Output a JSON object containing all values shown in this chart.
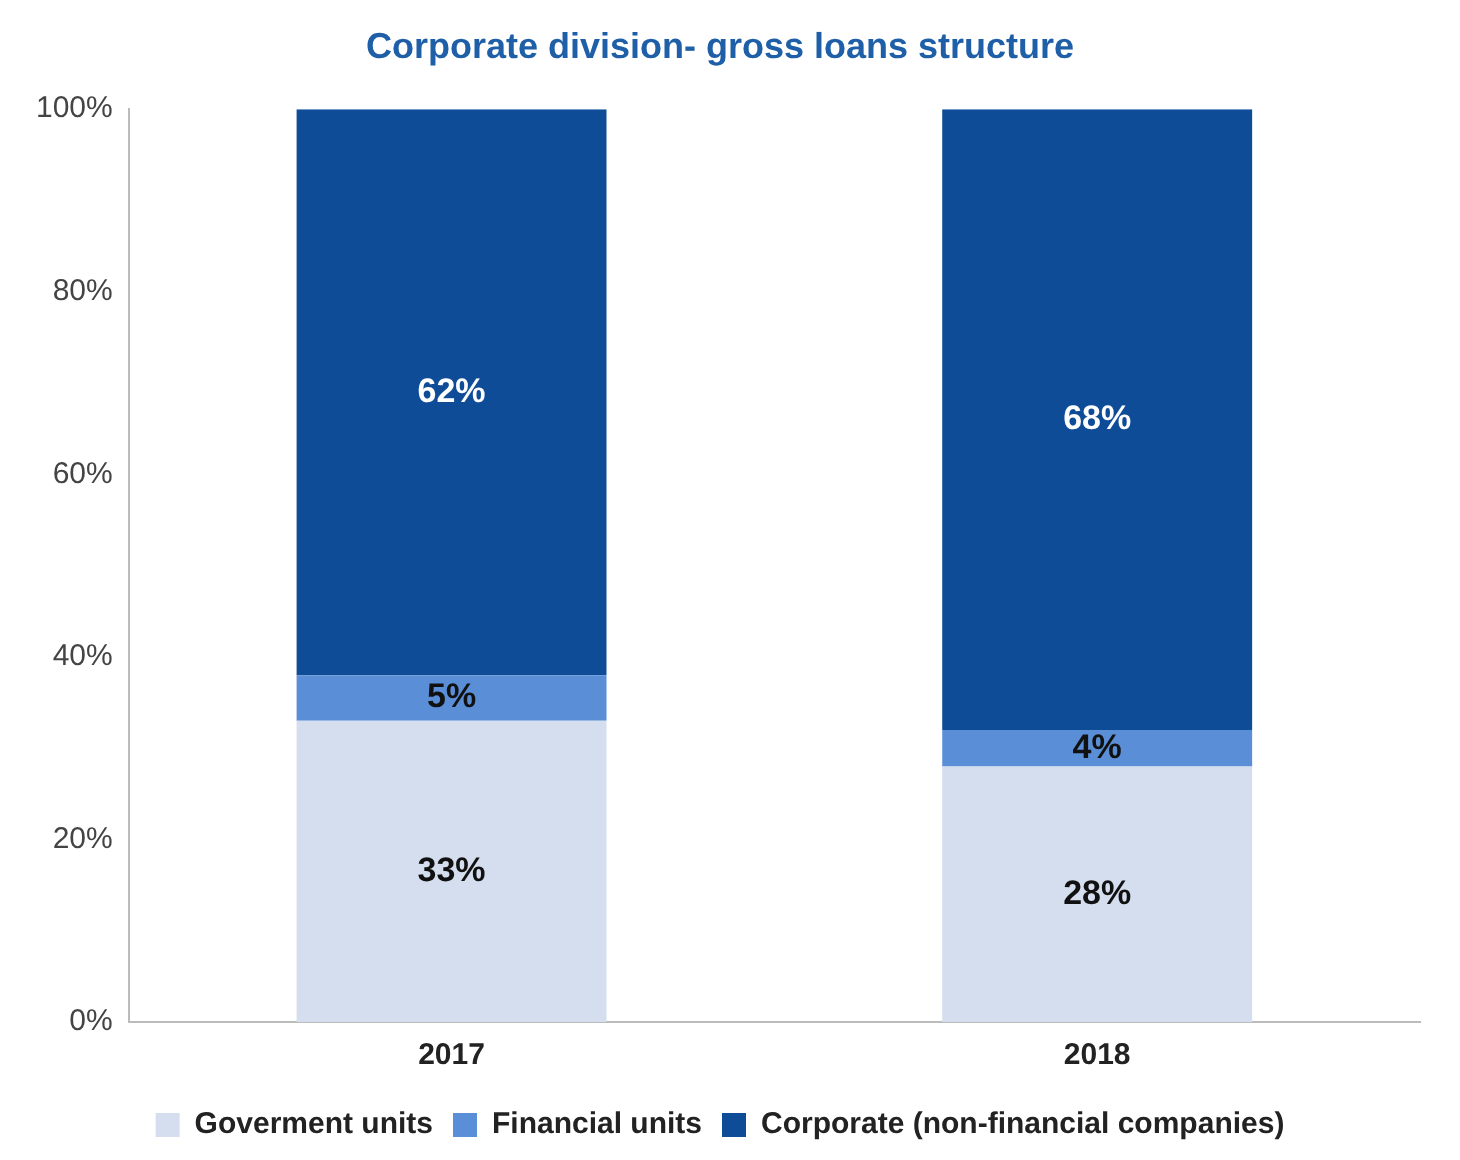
{
  "chart_data": {
    "type": "bar",
    "stacked": true,
    "title": "Corporate division- gross loans structure",
    "categories": [
      "2017",
      "2018"
    ],
    "series": [
      {
        "name": "Goverment units",
        "color": "#d5deee",
        "values": [
          33,
          28
        ],
        "value_labels": [
          "33%",
          "28%"
        ]
      },
      {
        "name": "Financial units",
        "color": "#5a8fd8",
        "values": [
          5,
          4
        ],
        "value_labels": [
          "5%",
          "4%"
        ]
      },
      {
        "name": "Corporate (non-financial companies)",
        "color": "#0e4c97",
        "values": [
          62,
          68
        ],
        "value_labels": [
          "62%",
          "68%"
        ]
      }
    ],
    "ylim": [
      0,
      100
    ],
    "yticks": [
      {
        "value": 0,
        "label": "0%"
      },
      {
        "value": 20,
        "label": "20%"
      },
      {
        "value": 40,
        "label": "40%"
      },
      {
        "value": 60,
        "label": "60%"
      },
      {
        "value": 80,
        "label": "80%"
      },
      {
        "value": 100,
        "label": "100%"
      }
    ],
    "grid": false,
    "legend": "bottom"
  }
}
